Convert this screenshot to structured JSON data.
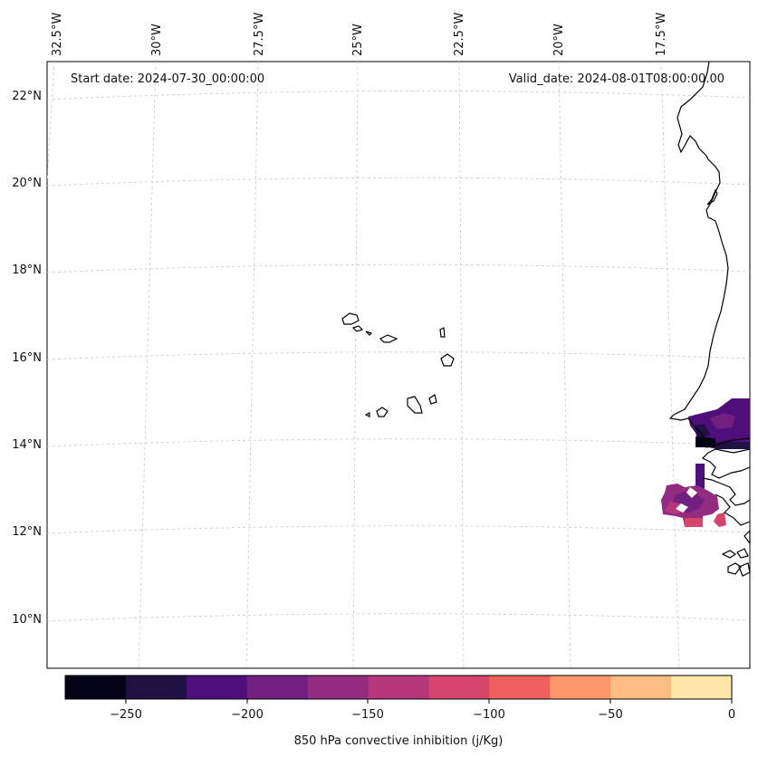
{
  "header": {
    "start_date": "Start date: 2024-07-30_00:00:00",
    "valid_date": "Valid_date: 2024-08-01T08:00:00.00"
  },
  "map": {
    "lon_labels": [
      "32.5°W",
      "30°W",
      "27.5°W",
      "25°W",
      "22.5°W",
      "20°W",
      "17.5°W"
    ],
    "lat_labels": [
      "22°N",
      "20°N",
      "18°N",
      "16°N",
      "14°N",
      "12°N",
      "10°N"
    ],
    "gridlines": true
  },
  "colorbar": {
    "label": "850 hPa convective inhibition (j/Kg)",
    "tick_labels": [
      "−250",
      "−200",
      "−150",
      "−100",
      "−50",
      "0"
    ],
    "levels": [
      -275,
      -250,
      -225,
      -200,
      -175,
      -150,
      -125,
      -100,
      -75,
      -50,
      -25,
      0
    ],
    "colors": [
      "#050417",
      "#1f1142",
      "#4f0f7b",
      "#721f81",
      "#932b80",
      "#b5367a",
      "#d8456c",
      "#f1605d",
      "#fd9668",
      "#febd82",
      "#fde7a9"
    ]
  },
  "chart_data": {
    "type": "heatmap",
    "variable": "850 hPa convective inhibition (j/Kg)",
    "units": "j/Kg",
    "start_date": "2024-07-30_00:00:00",
    "valid_date": "2024-08-01T08:00:00.00",
    "lon_range": [
      "32.5°W",
      "17.5°W"
    ],
    "lat_range": [
      "10°N",
      "22°N"
    ],
    "value_range": [
      -275,
      0
    ],
    "shaded_regions": [
      {
        "area": "Senegal coast near Dakar",
        "approx_lat": "14.5°N",
        "approx_value": -210
      },
      {
        "area": "Gambia / Casamance coast",
        "approx_lat": "14°N",
        "approx_value": -265
      },
      {
        "area": "Guinea-Bissau offshore",
        "approx_lat": "12.5°N",
        "approx_value": -130
      }
    ]
  }
}
